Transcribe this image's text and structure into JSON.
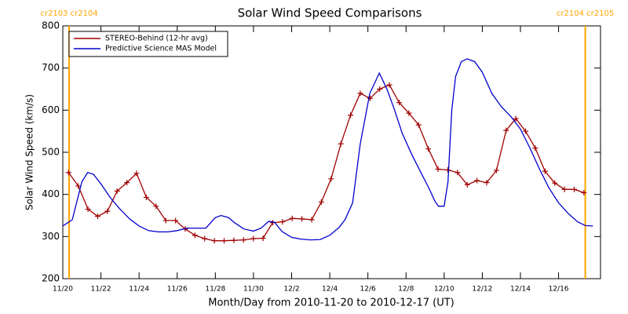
{
  "chart_data": {
    "type": "line",
    "title": "Solar Wind Speed Comparisons",
    "xlabel": "Month/Day from 2010-11-20 to 2010-12-17 (UT)",
    "ylabel": "Solar Wind Speed (km/s)",
    "xlim": [
      0,
      28.2
    ],
    "ylim": [
      200,
      800
    ],
    "yticks": [
      200,
      300,
      400,
      500,
      600,
      700,
      800
    ],
    "xticks": [
      {
        "value": 0,
        "label": "11/20"
      },
      {
        "value": 2,
        "label": "11/22"
      },
      {
        "value": 4,
        "label": "11/24"
      },
      {
        "value": 6,
        "label": "11/26"
      },
      {
        "value": 8,
        "label": "11/28"
      },
      {
        "value": 10,
        "label": "11/30"
      },
      {
        "value": 12,
        "label": "12/2"
      },
      {
        "value": 14,
        "label": "12/4"
      },
      {
        "value": 16,
        "label": "12/6"
      },
      {
        "value": 18,
        "label": "12/8"
      },
      {
        "value": 20,
        "label": "12/10"
      },
      {
        "value": 22,
        "label": "12/12"
      },
      {
        "value": 24,
        "label": "12/14"
      },
      {
        "value": 26,
        "label": "12/16"
      }
    ],
    "legend": "upper left",
    "annotations": [
      {
        "x": 0.33,
        "label": "cr2103 cr2104",
        "color": "#ffa500"
      },
      {
        "x": 27.4,
        "label": "cr2104 cr2105",
        "color": "#ffa500"
      }
    ],
    "series": [
      {
        "name": "STEREO-Behind (12-hr avg)",
        "color": "#a00000",
        "marker": "+",
        "x": [
          0.3,
          0.81,
          1.32,
          1.83,
          2.34,
          2.85,
          3.36,
          3.87,
          4.38,
          4.89,
          5.4,
          5.91,
          6.42,
          6.93,
          7.44,
          7.95,
          8.46,
          8.97,
          9.48,
          9.99,
          10.5,
          11.01,
          11.52,
          12.03,
          12.54,
          13.05,
          13.56,
          14.07,
          14.58,
          15.09,
          15.6,
          16.11,
          16.62,
          17.13,
          17.64,
          18.15,
          18.66,
          19.17,
          19.68,
          20.19,
          20.7,
          21.21,
          21.72,
          22.23,
          22.74,
          23.25,
          23.76,
          24.27,
          24.78,
          25.29,
          25.8,
          26.31,
          26.82,
          27.33
        ],
        "values": [
          452,
          420,
          365,
          348,
          360,
          408,
          428,
          450,
          393,
          372,
          338,
          338,
          318,
          303,
          295,
          290,
          290,
          291,
          292,
          295,
          296,
          333,
          335,
          343,
          342,
          340,
          382,
          437,
          520,
          588,
          640,
          628,
          650,
          660,
          618,
          593,
          565,
          508,
          460,
          458,
          452,
          423,
          433,
          428,
          457,
          552,
          580,
          550,
          510,
          455,
          427,
          412,
          412,
          404
        ]
      },
      {
        "name": "Predictive Science MAS Model",
        "color": "#0000cc",
        "x": [
          0,
          0.5,
          1.0,
          1.3,
          1.6,
          2,
          2.5,
          3,
          3.5,
          4,
          4.5,
          5,
          5.5,
          6,
          6.5,
          7,
          7.5,
          8,
          8.3,
          8.7,
          9,
          9.5,
          10,
          10.4,
          10.8,
          11.1,
          11.5,
          12,
          12.5,
          13,
          13.5,
          14,
          14.5,
          14.8,
          15.2,
          15.6,
          16.1,
          16.6,
          17.0,
          17.4,
          17.8,
          18.3,
          18.8,
          19.2,
          19.5,
          19.7,
          20.0,
          20.2,
          20.4,
          20.6,
          20.9,
          21.2,
          21.6,
          22.0,
          22.5,
          23.0,
          23.5,
          24.0,
          24.5,
          25.0,
          25.5,
          26.0,
          26.5,
          27.0,
          27.4,
          27.8
        ],
        "values": [
          325,
          340,
          430,
          452,
          448,
          425,
          392,
          365,
          342,
          325,
          314,
          311,
          311,
          314,
          320,
          320,
          320,
          345,
          350,
          345,
          333,
          318,
          313,
          320,
          336,
          334,
          312,
          298,
          294,
          292,
          293,
          303,
          322,
          340,
          380,
          520,
          640,
          688,
          650,
          600,
          545,
          495,
          450,
          415,
          385,
          372,
          372,
          430,
          600,
          680,
          715,
          722,
          715,
          690,
          640,
          608,
          585,
          555,
          510,
          460,
          415,
          380,
          355,
          335,
          326,
          325
        ]
      }
    ]
  }
}
